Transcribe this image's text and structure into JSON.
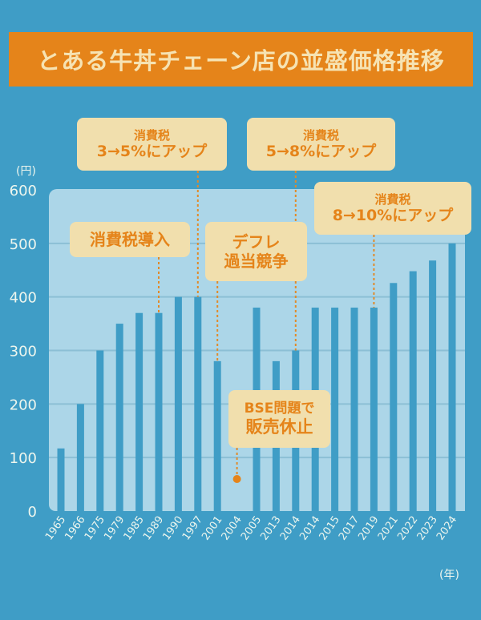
{
  "title": "とある牛丼チェーン店の並盛価格推移",
  "colors": {
    "background": "#3f9dc6",
    "title_bg": "#e5841a",
    "title_text": "#f6e3b3",
    "panel": "#acd6e8",
    "bar": "#3f9dc6",
    "gridline": "#8cbfd5",
    "annotation_bg": "#f1dfad",
    "annotation_text": "#e5841a"
  },
  "chart_data": {
    "type": "bar",
    "title": "とある牛丼チェーン店の並盛価格推移",
    "xlabel": "(年)",
    "ylabel": "(円)",
    "ylim": [
      0,
      600
    ],
    "yticks": [
      0,
      100,
      200,
      300,
      400,
      500,
      600
    ],
    "grid": true,
    "categories": [
      "1965",
      "1966",
      "1975",
      "1979",
      "1985",
      "1989",
      "1990",
      "1997",
      "2001",
      "2004",
      "2005",
      "2013",
      "2014",
      "2014",
      "2015",
      "2017",
      "2019",
      "2021",
      "2022",
      "2023",
      "2024"
    ],
    "values": [
      117,
      200,
      300,
      350,
      370,
      370,
      400,
      400,
      280,
      0,
      380,
      280,
      300,
      380,
      380,
      380,
      380,
      426,
      448,
      468,
      500
    ],
    "annotations": [
      {
        "id": "tax-intro",
        "line1": "消費税導入",
        "line2": "",
        "category_index": 5
      },
      {
        "id": "tax-3-5",
        "line1": "消費税",
        "line2": "3→5%にアップ",
        "category_index": 7
      },
      {
        "id": "deflation",
        "line1": "デフレ",
        "line2": "過当競争",
        "category_index": 8
      },
      {
        "id": "bse",
        "line1": "BSE問題で",
        "line2": "販売休止",
        "category_index": 9
      },
      {
        "id": "tax-5-8",
        "line1": "消費税",
        "line2": "5→8%にアップ",
        "category_index": 12
      },
      {
        "id": "tax-8-10",
        "line1": "消費税",
        "line2": "8→10%にアップ",
        "category_index": 16
      }
    ]
  }
}
